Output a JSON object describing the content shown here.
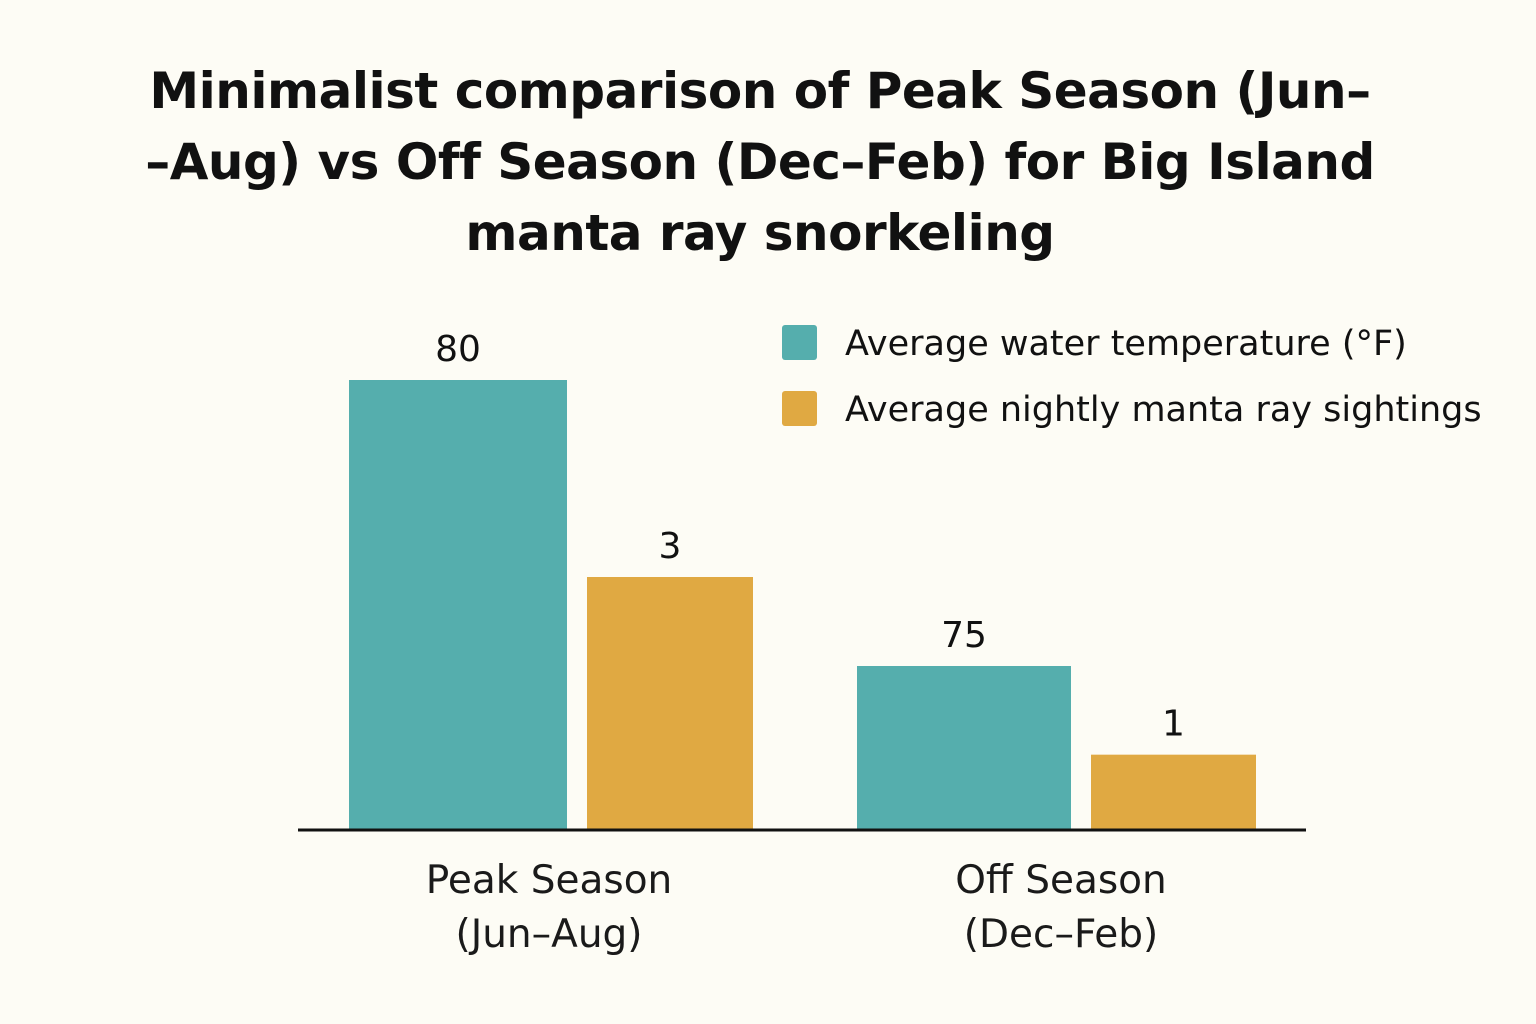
{
  "chart_data": {
    "type": "bar",
    "title": "Minimalist comparison of Peak Season (Jun–\n–Aug) vs Off Season (Dec–Feb) for Big Island\nmanta ray snorkeling",
    "categories": [
      [
        "Peak Season",
        "(Jun–Aug)"
      ],
      [
        "Off Season",
        "(Dec–Feb)"
      ]
    ],
    "series": [
      {
        "name": "Average water temperature (°F)",
        "color": "#55aead",
        "values": [
          80,
          75
        ],
        "labels": [
          "80",
          "75"
        ]
      },
      {
        "name": "Average nightly manta ray sightings",
        "color": "#e0a942",
        "values": [
          3,
          1
        ],
        "labels": [
          "3",
          "1"
        ]
      }
    ],
    "legend_position": "top-right",
    "grid": false,
    "y_axis_visible": false,
    "axis_color": "#111111"
  }
}
